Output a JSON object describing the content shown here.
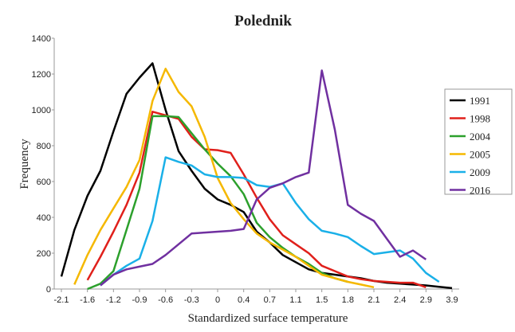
{
  "chart_data": {
    "type": "line",
    "title": "Polednik",
    "x_label": "Standardized surface temperature",
    "y_label": "Frequency",
    "categories": [
      "-2.1",
      null,
      "-1.6",
      null,
      "-1.2",
      null,
      "-0.9",
      null,
      "-0.6",
      null,
      "-0.3",
      null,
      "0",
      null,
      "0.4",
      null,
      "0.7",
      null,
      "1.1",
      null,
      "1.5",
      null,
      "1.8",
      null,
      "2.1",
      null,
      "2.4",
      null,
      "2.9",
      null,
      "3.9"
    ],
    "ylim": [
      0,
      1400
    ],
    "yticks": [
      0,
      200,
      400,
      600,
      800,
      1000,
      1200,
      1400
    ],
    "legend": "right",
    "series": [
      {
        "name": "1991",
        "color": "#000000",
        "values": [
          70,
          330,
          520,
          660,
          880,
          1090,
          1180,
          1260,
          1000,
          770,
          660,
          560,
          500,
          470,
          430,
          320,
          260,
          190,
          150,
          110,
          90,
          80,
          70,
          60,
          45,
          35,
          30,
          25,
          20,
          12,
          5
        ]
      },
      {
        "name": "1998",
        "color": "#e0201b",
        "values": [
          null,
          null,
          50,
          180,
          320,
          470,
          650,
          990,
          970,
          950,
          850,
          780,
          775,
          760,
          640,
          510,
          390,
          300,
          250,
          200,
          130,
          100,
          70,
          55,
          45,
          40,
          35,
          35,
          10,
          null,
          null
        ]
      },
      {
        "name": "2004",
        "color": "#2ca02c",
        "values": [
          null,
          null,
          0,
          30,
          100,
          330,
          560,
          965,
          965,
          960,
          870,
          780,
          700,
          630,
          530,
          370,
          290,
          230,
          180,
          140,
          90,
          60,
          40,
          null,
          null,
          null,
          null,
          null,
          null,
          null,
          null
        ]
      },
      {
        "name": "2005",
        "color": "#f5b800",
        "values": [
          null,
          25,
          190,
          330,
          450,
          570,
          720,
          1050,
          1230,
          1100,
          1020,
          850,
          620,
          480,
          390,
          310,
          260,
          220,
          180,
          130,
          80,
          60,
          40,
          25,
          10,
          null,
          null,
          null,
          null,
          null,
          null
        ]
      },
      {
        "name": "2009",
        "color": "#1ab0e8",
        "values": [
          null,
          null,
          null,
          20,
          80,
          130,
          170,
          380,
          735,
          710,
          690,
          640,
          625,
          625,
          620,
          580,
          570,
          590,
          480,
          390,
          325,
          310,
          290,
          240,
          195,
          205,
          215,
          170,
          90,
          40,
          null
        ]
      },
      {
        "name": "2016",
        "color": "#7030a0",
        "values": [
          null,
          null,
          null,
          20,
          80,
          110,
          125,
          140,
          190,
          250,
          310,
          315,
          320,
          325,
          335,
          500,
          565,
          590,
          625,
          650,
          1220,
          890,
          470,
          420,
          380,
          280,
          180,
          215,
          165,
          null,
          null
        ]
      }
    ]
  }
}
